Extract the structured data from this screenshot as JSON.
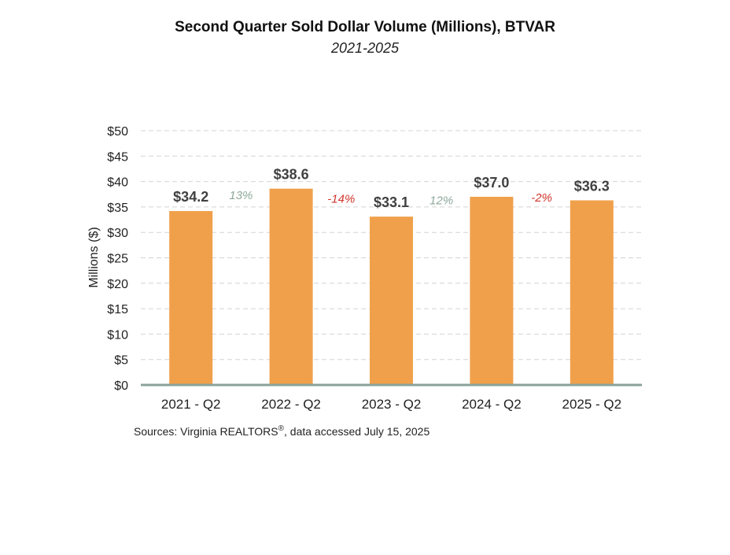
{
  "chart_data": {
    "type": "bar",
    "title": "Second Quarter Sold Dollar Volume (Millions), BTVAR",
    "subtitle": "2021-2025",
    "ylabel": "Millions ($)",
    "ylim": [
      0,
      50
    ],
    "yticks": [
      0,
      5,
      10,
      15,
      20,
      25,
      30,
      35,
      40,
      45,
      50
    ],
    "ytick_labels": [
      "$0",
      "$5",
      "$10",
      "$15",
      "$20",
      "$25",
      "$30",
      "$35",
      "$40",
      "$45",
      "$50"
    ],
    "categories": [
      "2021 - Q2",
      "2022 - Q2",
      "2023 - Q2",
      "2024 - Q2",
      "2025 - Q2"
    ],
    "values": [
      34.2,
      38.6,
      33.1,
      37.0,
      36.3
    ],
    "value_labels": [
      "$34.2",
      "$38.6",
      "$33.1",
      "$37.0",
      "$36.3"
    ],
    "changes": [
      {
        "label": "13%",
        "y": 36.5,
        "color": "#8fa89c"
      },
      {
        "label": "-14%",
        "y": 35.8,
        "color": "#d0362d"
      },
      {
        "label": "12%",
        "y": 35.5,
        "color": "#8fa89c"
      },
      {
        "label": "-2%",
        "y": 36.1,
        "color": "#d0362d"
      }
    ],
    "bar_color": "#f0a04b",
    "grid": true,
    "legend": "none"
  },
  "source_prefix": "Sources: Virginia REALTORS",
  "source_mark": "®",
  "source_suffix": ", data accessed July 15, 2025"
}
